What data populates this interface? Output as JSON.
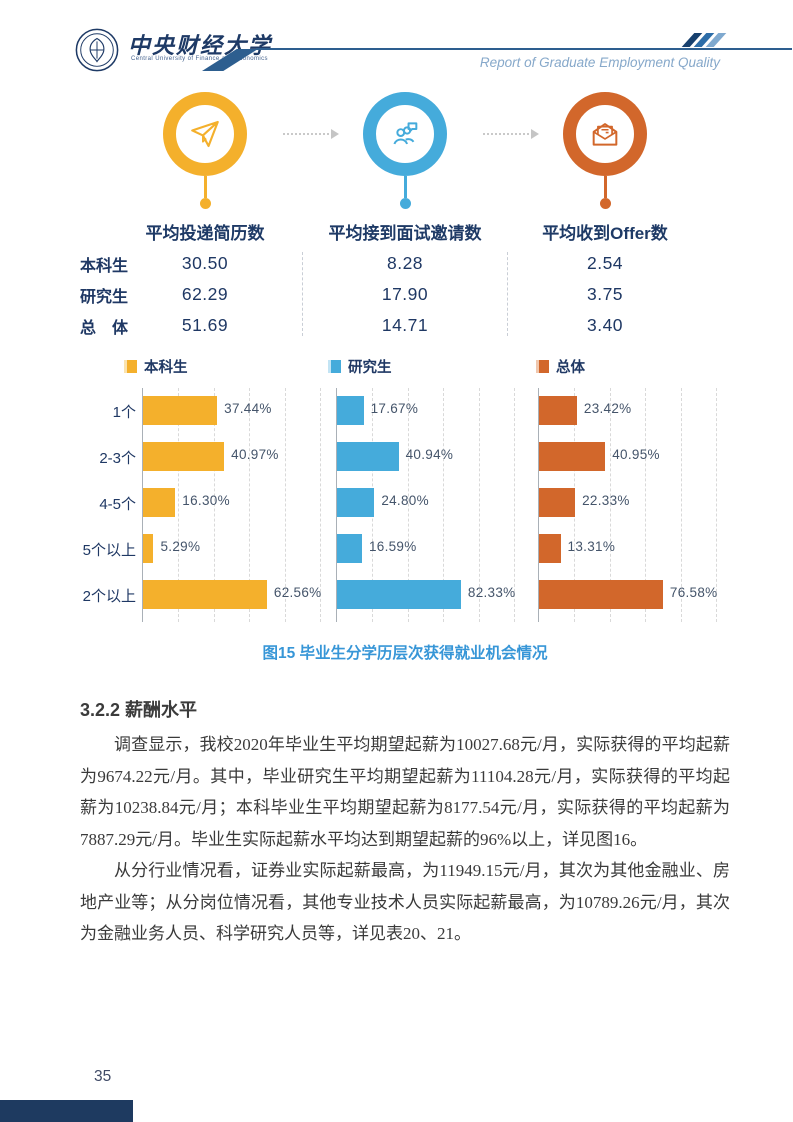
{
  "header": {
    "logo_cn": "中央财经大学",
    "logo_en": "Central University of Finance and Economics",
    "tagline": "Report of Graduate Employment Quality"
  },
  "infographic": {
    "metrics": [
      {
        "label": "平均投递简历数",
        "icon": "paper-plane-icon"
      },
      {
        "label": "平均接到面试邀请数",
        "icon": "interview-icon"
      },
      {
        "label": "平均收到Offer数",
        "icon": "offer-envelope-icon"
      }
    ],
    "rows": [
      {
        "label": "本科生",
        "values": [
          "30.50",
          "8.28",
          "2.54"
        ]
      },
      {
        "label": "研究生",
        "values": [
          "62.29",
          "17.90",
          "3.75"
        ]
      },
      {
        "label": "总　体",
        "values": [
          "51.69",
          "14.71",
          "3.40"
        ]
      }
    ]
  },
  "chart_data": {
    "type": "bar",
    "orientation": "horizontal",
    "title": "图15  毕业生分学历层次获得就业机会情况",
    "categories": [
      "1个",
      "2-3个",
      "4-5个",
      "5个以上",
      "2个以上"
    ],
    "series": [
      {
        "name": "本科生",
        "color": "#F4B02C",
        "light": "#fbe3ae",
        "values": [
          37.44,
          40.97,
          16.3,
          5.29,
          62.56
        ]
      },
      {
        "name": "研究生",
        "color": "#45ABDB",
        "light": "#c3e4f4",
        "values": [
          17.67,
          40.94,
          24.8,
          16.59,
          82.33
        ]
      },
      {
        "name": "总体",
        "color": "#D2672B",
        "light": "#f0c7ad",
        "values": [
          23.42,
          40.95,
          22.33,
          13.31,
          76.58
        ]
      }
    ],
    "value_suffix": "%",
    "grid": "dashed-vertical",
    "legend_position": "top",
    "axis_color": "#a9b0b7"
  },
  "caption": "图15  毕业生分学历层次获得就业机会情况",
  "section": {
    "heading": "3.2.2  薪酬水平",
    "paragraphs": [
      "调查显示，我校2020年毕业生平均期望起薪为10027.68元/月，实际获得的平均起薪为9674.22元/月。其中，毕业研究生平均期望起薪为11104.28元/月，实际获得的平均起薪为10238.84元/月；本科毕业生平均期望起薪为8177.54元/月，实际获得的平均起薪为7887.29元/月。毕业生实际起薪水平均达到期望起薪的96%以上，详见图16。",
      "从分行业情况看，证券业实际起薪最高，为11949.15元/月，其次为其他金融业、房地产业等；从分岗位情况看，其他专业技术人员实际起薪最高，为10789.26元/月，其次为金融业务人员、科学研究人员等，详见表20、21。"
    ]
  },
  "footer": {
    "page_number": "35"
  }
}
